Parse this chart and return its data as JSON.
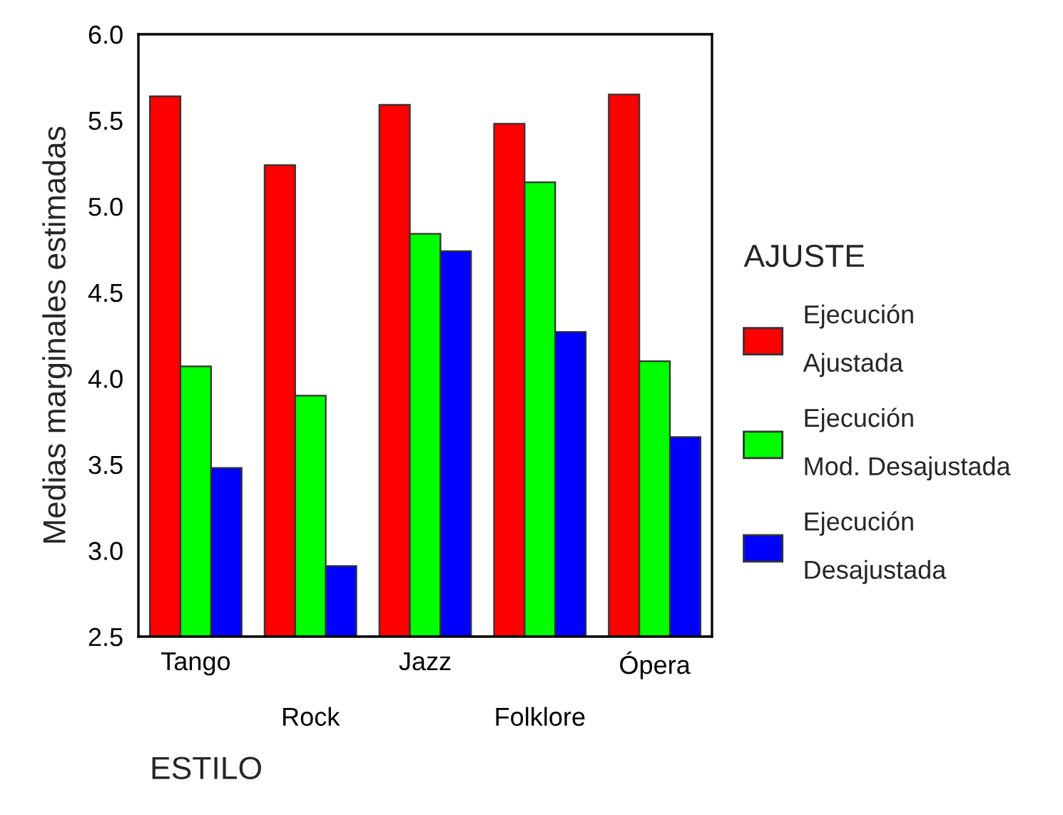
{
  "chart_data": {
    "type": "bar",
    "xlabel": "ESTILO",
    "ylabel": "Medias marginales estimadas",
    "legend_title": "AJUSTE",
    "categories": [
      "Tango",
      "Rock",
      "Jazz",
      "Folklore",
      "Ópera"
    ],
    "series": [
      {
        "name": "Ejecución Ajustada",
        "color": "#ff0000",
        "values": [
          5.64,
          5.24,
          5.59,
          5.48,
          5.65
        ]
      },
      {
        "name": "Ejecución Mod. Desajustada",
        "color": "#00ff00",
        "values": [
          4.07,
          3.9,
          4.84,
          5.14,
          4.1
        ]
      },
      {
        "name": "Ejecución Desajustada",
        "color": "#0000ff",
        "values": [
          3.48,
          2.91,
          4.74,
          4.27,
          3.66
        ]
      }
    ],
    "ylim": [
      2.5,
      6.0
    ],
    "yticks": [
      {
        "value": 2.5,
        "label": "2.5"
      },
      {
        "value": 3,
        "label": "3.0"
      },
      {
        "value": 3.5,
        "label": "3.5"
      },
      {
        "value": 4,
        "label": "4.0"
      },
      {
        "value": 4.5,
        "label": "4.5"
      },
      {
        "value": 5,
        "label": "5.0"
      },
      {
        "value": 5.5,
        "label": "5.5"
      },
      {
        "value": 6,
        "label": "6.0"
      }
    ],
    "grid": false,
    "legend": "right"
  }
}
